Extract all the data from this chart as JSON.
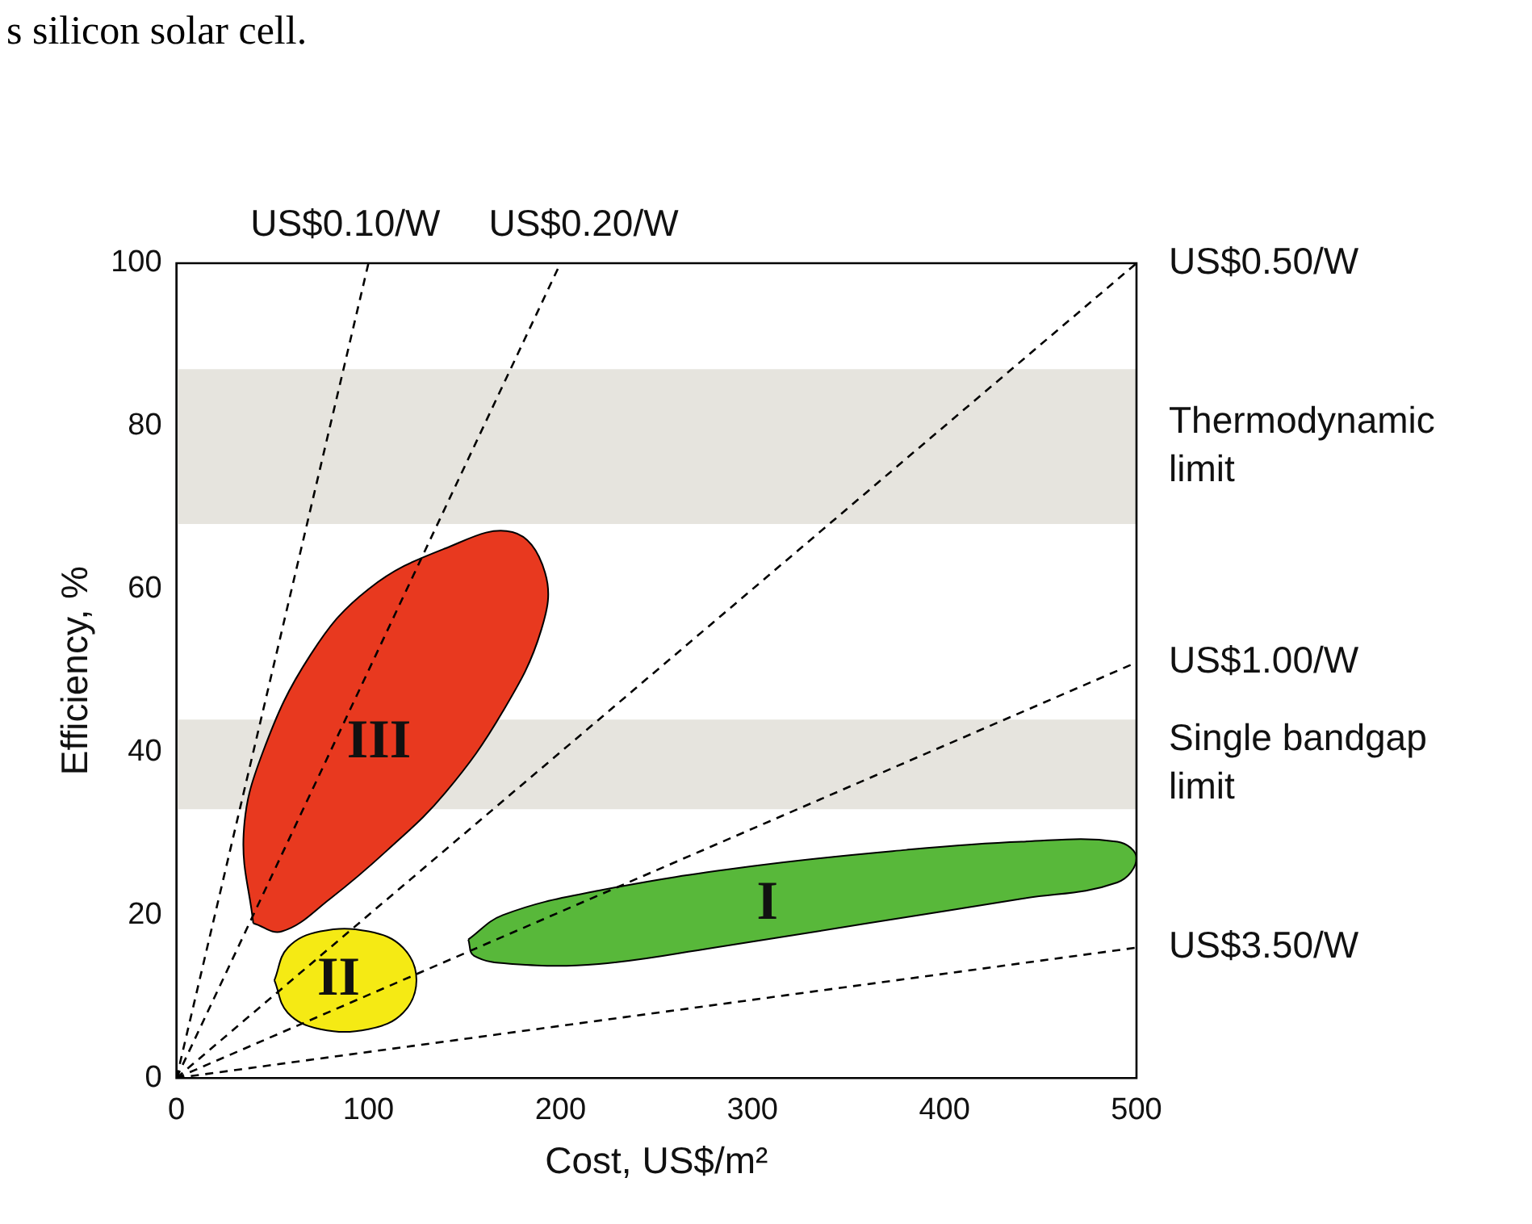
{
  "chart_data": {
    "type": "line",
    "xlabel": "Cost, US$/m²",
    "ylabel": "Efficiency, %",
    "xlim": [
      0,
      500
    ],
    "ylim": [
      0,
      100
    ],
    "xticks": [
      0,
      100,
      200,
      300,
      400,
      500
    ],
    "yticks": [
      0,
      20,
      40,
      60,
      80,
      100
    ],
    "grid": false,
    "legend": false,
    "line_style": "dashed",
    "marker": "none",
    "annotations": [
      "s silicon solar cell."
    ],
    "bands": [
      {
        "axis": "y",
        "from": 68,
        "to": 87,
        "label": "Thermodynamic limit",
        "color": "#e6e4de"
      },
      {
        "axis": "y",
        "from": 33,
        "to": 44,
        "label": "Single bandgap limit",
        "color": "#e6e4de"
      }
    ],
    "series": [
      {
        "type": "area",
        "name": "III",
        "color": "#e8391f",
        "x": [
          40,
          35,
          45,
          70,
          100,
          140,
          175,
          192,
          190,
          170,
          140,
          110,
          80,
          55,
          40
        ],
        "values": [
          19,
          30,
          40,
          52,
          60,
          65,
          67,
          62,
          55,
          45,
          35,
          28,
          22,
          18,
          19
        ]
      },
      {
        "type": "area",
        "name": "II",
        "color": "#f5ea14",
        "x": [
          51,
          58,
          75,
          100,
          118,
          125,
          118,
          100,
          75,
          58,
          51
        ],
        "values": [
          12,
          16,
          18,
          18,
          16,
          12,
          8,
          6,
          6,
          8,
          12
        ]
      },
      {
        "type": "area",
        "name": "I",
        "color": "#58b83a",
        "x": [
          152,
          170,
          220,
          300,
          380,
          440,
          490,
          500,
          490,
          440,
          360,
          280,
          220,
          175,
          155,
          152
        ],
        "values": [
          17,
          20,
          23,
          26,
          28,
          29,
          29,
          27,
          24,
          22,
          19,
          16,
          14,
          14,
          15,
          17
        ]
      },
      {
        "name": "US$0.10/W",
        "color": "#000000",
        "x": [
          0,
          100
        ],
        "values": [
          0,
          100
        ]
      },
      {
        "name": "US$0.20/W",
        "color": "#000000",
        "x": [
          0,
          200
        ],
        "values": [
          0,
          100
        ]
      },
      {
        "name": "US$0.50/W",
        "color": "#000000",
        "x": [
          0,
          500
        ],
        "values": [
          0,
          100
        ]
      },
      {
        "name": "US$1.00/W",
        "color": "#000000",
        "x": [
          0,
          500
        ],
        "values": [
          0,
          51
        ]
      },
      {
        "name": "US$3.50/W",
        "color": "#000000",
        "x": [
          0,
          500
        ],
        "values": [
          0,
          16
        ]
      }
    ]
  }
}
